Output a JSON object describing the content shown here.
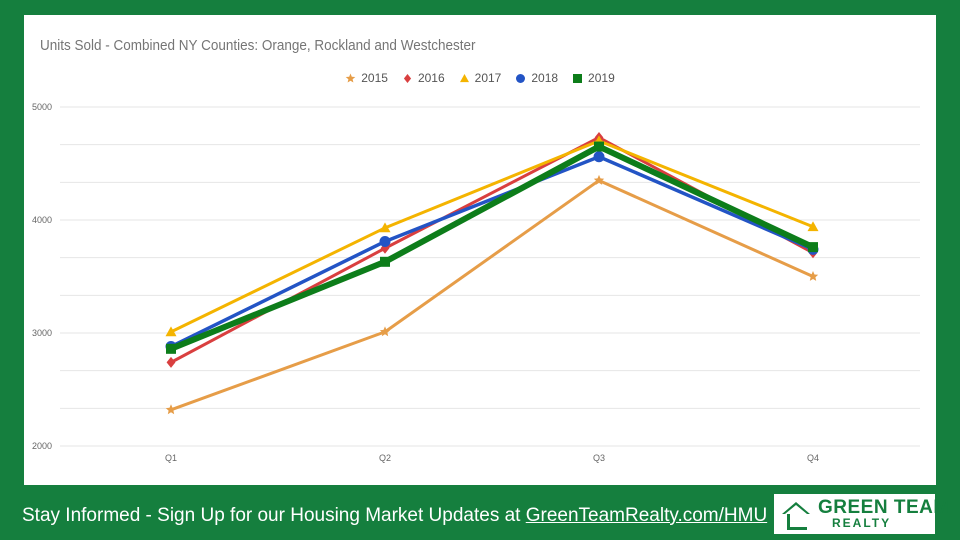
{
  "chart_data": {
    "type": "line",
    "title": "Units Sold  - Combined NY Counties: Orange, Rockland and Westchester",
    "xlabel": "",
    "ylabel": "",
    "categories": [
      "Q1",
      "Q2",
      "Q3",
      "Q4"
    ],
    "ylim": [
      2000,
      5000
    ],
    "yticks": [
      2000,
      3000,
      4000,
      5000
    ],
    "grid": true,
    "legend_position": "top",
    "series": [
      {
        "name": "2015",
        "color": "#e69d48",
        "marker": "star",
        "values": [
          2320,
          3010,
          4350,
          3500
        ]
      },
      {
        "name": "2016",
        "color": "#d93f3f",
        "marker": "diamond",
        "values": [
          2740,
          3750,
          4730,
          3710
        ]
      },
      {
        "name": "2017",
        "color": "#f4b400",
        "marker": "triangle",
        "values": [
          3010,
          3930,
          4700,
          3940
        ]
      },
      {
        "name": "2018",
        "color": "#2354c5",
        "marker": "circle",
        "values": [
          2880,
          3810,
          4560,
          3740
        ]
      },
      {
        "name": "2019",
        "color": "#0d7d1a",
        "marker": "square",
        "values": [
          2860,
          3630,
          4650,
          3760
        ]
      }
    ]
  },
  "footer": {
    "text": "Stay Informed - Sign Up for our Housing Market Updates at ",
    "link": "GreenTeamRealty.com/HMU"
  },
  "logo": {
    "name": "GREEN TEAM",
    "sub": "REALTY"
  }
}
